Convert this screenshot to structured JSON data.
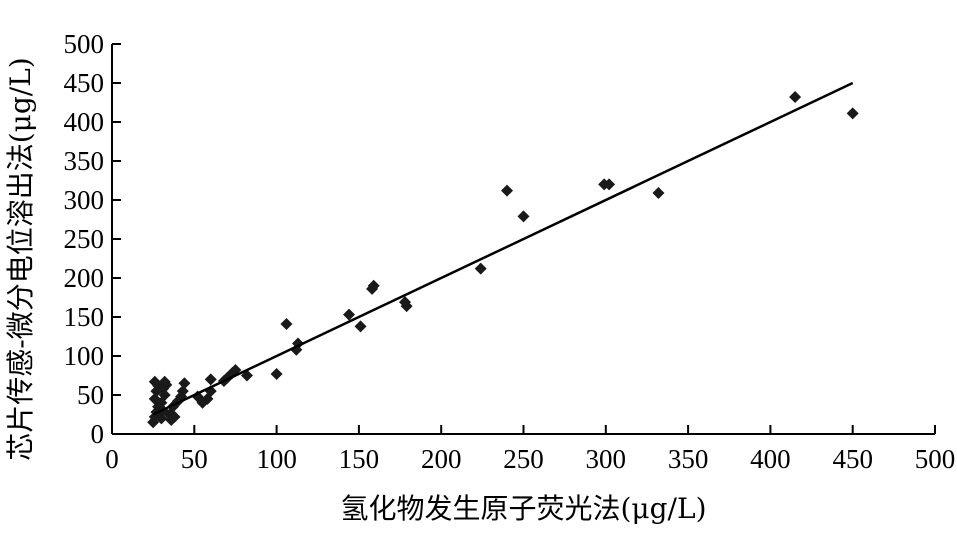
{
  "chart_data": {
    "type": "scatter",
    "title": "",
    "xlabel": "氢化物发生原子荧光法(μg/L)",
    "ylabel": "芯片传感-微分电位溶出法(μg/L)",
    "xlim": [
      0,
      500
    ],
    "ylim": [
      0,
      500
    ],
    "x_ticks": [
      "0",
      "50",
      "100",
      "150",
      "200",
      "250",
      "300",
      "350",
      "400",
      "450",
      "500"
    ],
    "y_ticks": [
      "0",
      "50",
      "100",
      "150",
      "200",
      "250",
      "300",
      "350",
      "400",
      "450",
      "500"
    ],
    "grid": false,
    "legend": "none",
    "marker": "diamond",
    "colors": {
      "points": "#1a1a1a",
      "trendline": "#000000"
    },
    "trendline": {
      "x": [
        25,
        450
      ],
      "y": [
        25,
        450
      ]
    },
    "series": [
      {
        "values": [
          [
            25,
            15
          ],
          [
            26,
            22
          ],
          [
            27,
            28
          ],
          [
            28,
            35
          ],
          [
            26,
            45
          ],
          [
            27,
            55
          ],
          [
            28,
            62
          ],
          [
            26,
            67
          ],
          [
            30,
            20
          ],
          [
            31,
            30
          ],
          [
            30,
            40
          ],
          [
            32,
            50
          ],
          [
            31,
            58
          ],
          [
            33,
            63
          ],
          [
            32,
            67
          ],
          [
            35,
            25
          ],
          [
            36,
            18
          ],
          [
            38,
            22
          ],
          [
            37,
            35
          ],
          [
            40,
            42
          ],
          [
            42,
            48
          ],
          [
            43,
            55
          ],
          [
            44,
            65
          ],
          [
            52,
            48
          ],
          [
            55,
            40
          ],
          [
            58,
            45
          ],
          [
            60,
            55
          ],
          [
            60,
            70
          ],
          [
            68,
            68
          ],
          [
            70,
            72
          ],
          [
            73,
            78
          ],
          [
            75,
            82
          ],
          [
            82,
            75
          ],
          [
            100,
            77
          ],
          [
            106,
            141
          ],
          [
            112,
            108
          ],
          [
            113,
            116
          ],
          [
            144,
            153
          ],
          [
            151,
            138
          ],
          [
            158,
            186
          ],
          [
            159,
            190
          ],
          [
            178,
            169
          ],
          [
            179,
            164
          ],
          [
            224,
            212
          ],
          [
            240,
            312
          ],
          [
            250,
            279
          ],
          [
            299,
            320
          ],
          [
            302,
            320
          ],
          [
            332,
            309
          ],
          [
            415,
            432
          ],
          [
            450,
            411
          ]
        ]
      }
    ]
  }
}
